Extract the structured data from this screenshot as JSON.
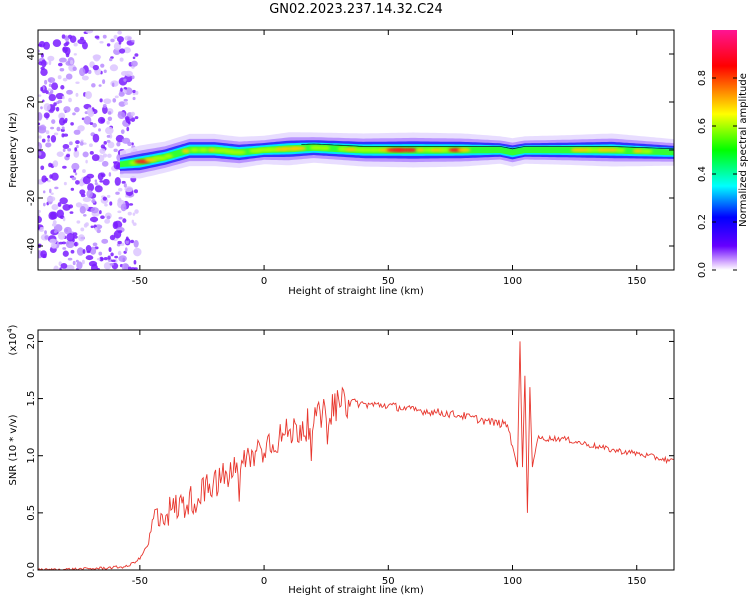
{
  "title": "GN02.2023.237.14.32.C24",
  "colors": {
    "snr_line": "#e8372e",
    "background": "#ffffff"
  },
  "chart_data": [
    {
      "type": "heatmap",
      "xlabel": "Height of straight line (km)",
      "ylabel": "Frequency (Hz)",
      "xlim": [
        -91,
        165
      ],
      "ylim": [
        -50,
        50
      ],
      "x_ticks": [
        -50,
        0,
        50,
        100,
        150
      ],
      "y_ticks": [
        -40,
        -20,
        0,
        20,
        40
      ],
      "colorbar": {
        "label": "Normalized spectral amplitude",
        "range": [
          0,
          1
        ],
        "ticks": [
          0.0,
          0.2,
          0.4,
          0.6,
          0.8
        ],
        "colormap": [
          "#ffffff",
          "#6600ff",
          "#0000ff",
          "#00ffff",
          "#00ff00",
          "#ffff00",
          "#ff0000",
          "#ff1493"
        ]
      },
      "noise_region_x": [
        -91,
        -55
      ],
      "ridge": {
        "x": [
          -58,
          -50,
          -40,
          -30,
          -20,
          -10,
          0,
          10,
          20,
          40,
          60,
          80,
          95,
          100,
          105,
          120,
          140,
          165
        ],
        "y": [
          -6,
          -5,
          -3,
          0,
          0,
          -1,
          0,
          0.5,
          1,
          0,
          0,
          0,
          0,
          -1,
          0,
          0,
          0,
          -1
        ],
        "amp": [
          0.5,
          0.85,
          0.75,
          0.8,
          0.8,
          0.75,
          0.6,
          0.85,
          0.7,
          0.85,
          0.95,
          0.85,
          0.55,
          0.6,
          0.55,
          0.65,
          0.85,
          0.5
        ]
      },
      "grid": false
    },
    {
      "type": "line",
      "xlabel": "Height of straight line (km)",
      "ylabel": "SNR (10 * v/v)",
      "y_scale_label": "(x10",
      "y_scale_exp": "4",
      "xlim": [
        -91,
        165
      ],
      "ylim": [
        0,
        2.1
      ],
      "x_ticks": [
        -50,
        0,
        50,
        100,
        150
      ],
      "y_ticks": [
        0.0,
        0.5,
        1.0,
        1.5,
        2.0
      ],
      "series": [
        {
          "x": [
            -91,
            -70,
            -55,
            -50,
            -46,
            -44,
            -42,
            -40,
            -30,
            -20,
            -10,
            0,
            10,
            20,
            30,
            35,
            40,
            50,
            60,
            70,
            80,
            90,
            98,
            102,
            103,
            104,
            105,
            106,
            107,
            108,
            110,
            120,
            130,
            140,
            150,
            165
          ],
          "y": [
            0.0,
            0.01,
            0.03,
            0.1,
            0.25,
            0.5,
            0.45,
            0.5,
            0.6,
            0.75,
            0.9,
            1.1,
            1.2,
            1.3,
            1.45,
            1.47,
            1.45,
            1.44,
            1.4,
            1.38,
            1.35,
            1.3,
            1.27,
            0.9,
            2.0,
            0.9,
            1.7,
            0.5,
            1.6,
            0.9,
            1.15,
            1.15,
            1.1,
            1.05,
            1.02,
            0.95
          ]
        }
      ],
      "grid": false
    }
  ]
}
